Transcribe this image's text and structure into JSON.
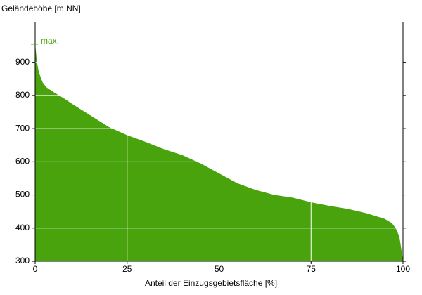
{
  "chart_data": {
    "type": "area",
    "y_label": "Geländehöhe [m NN]",
    "x_label": "Anteil der Einzugsgebietsfläche [%]",
    "x": [
      0,
      0.5,
      1,
      2,
      3,
      5,
      8,
      10,
      15,
      20,
      25,
      30,
      35,
      40,
      45,
      50,
      55,
      60,
      65,
      70,
      75,
      80,
      85,
      90,
      95,
      97,
      98,
      99,
      100
    ],
    "values": [
      955,
      900,
      870,
      840,
      825,
      810,
      790,
      775,
      740,
      705,
      680,
      660,
      638,
      620,
      595,
      565,
      535,
      515,
      500,
      492,
      478,
      467,
      458,
      445,
      428,
      415,
      400,
      375,
      305
    ],
    "color": "#48a30c",
    "max_label": "max.",
    "max_value": 955,
    "xlim": [
      0,
      100
    ],
    "xticks": [
      0,
      25,
      50,
      75,
      100
    ],
    "ylim": [
      300,
      1020
    ],
    "yticks": [
      300,
      400,
      500,
      600,
      700,
      800,
      900
    ],
    "grid": true
  }
}
